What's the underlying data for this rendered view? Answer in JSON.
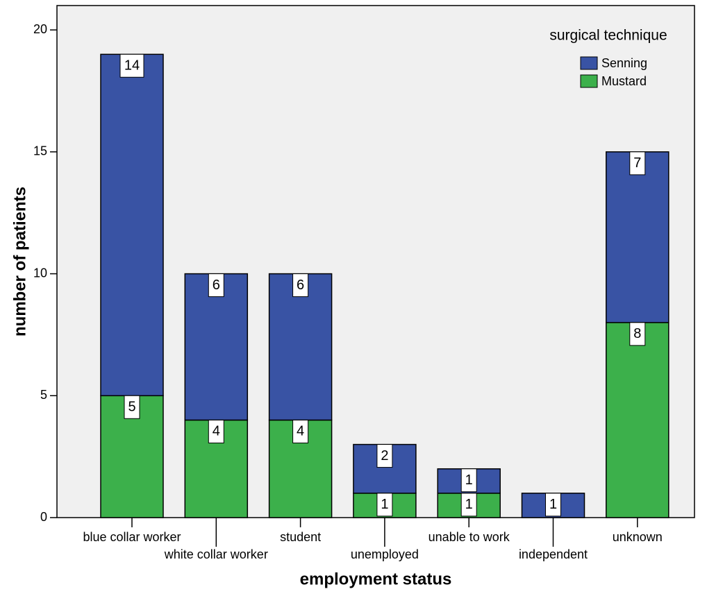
{
  "chart_data": {
    "type": "stacked-bar",
    "x_label": "employment status",
    "y_label": "number of patients",
    "legend_title": "surgical technique",
    "legend_position": "upper right",
    "categories": [
      "blue collar worker",
      "white collar worker",
      "student",
      "unemployed",
      "unable to work",
      "independent",
      "unknown"
    ],
    "series": [
      {
        "name": "Senning",
        "color": "#3953a4",
        "values": [
          14,
          6,
          6,
          2,
          1,
          1,
          7
        ]
      },
      {
        "name": "Mustard",
        "color": "#3cb04b",
        "values": [
          5,
          4,
          4,
          1,
          1,
          null,
          8
        ]
      }
    ],
    "ylim": [
      0,
      21
    ],
    "yticks": [
      0,
      5,
      10,
      15,
      20
    ]
  }
}
